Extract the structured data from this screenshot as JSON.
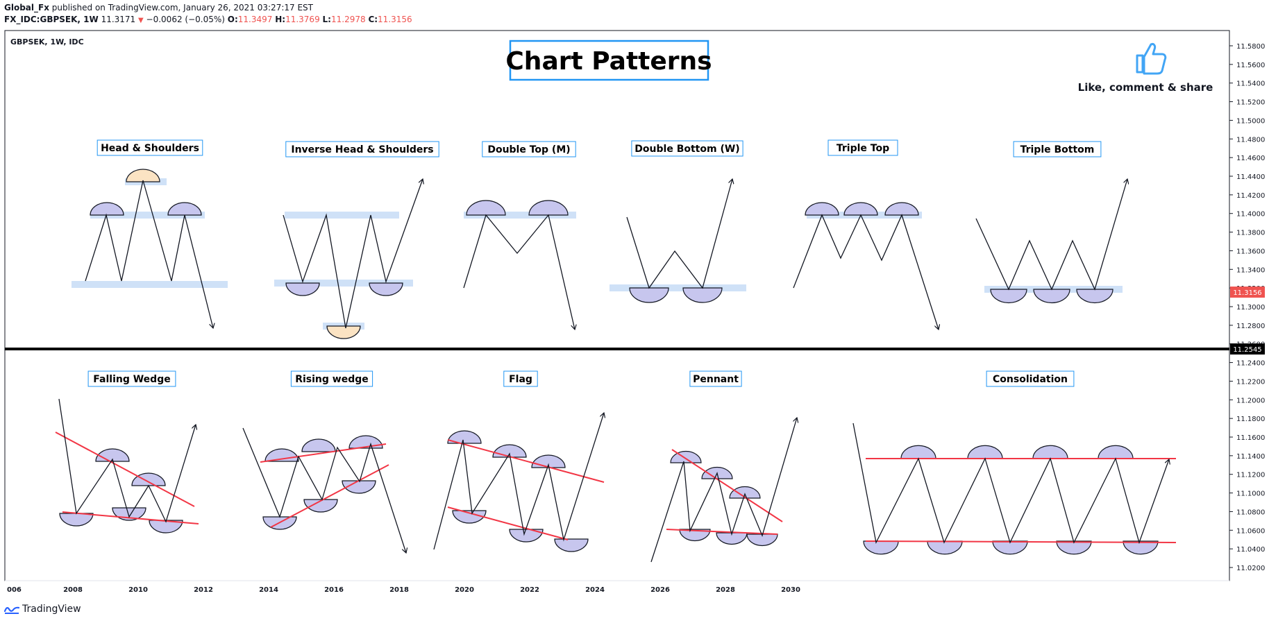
{
  "header": {
    "author": "Global_Fx",
    "published": " published on TradingView.com, January 26, 2021 03:27:17 EST",
    "symbol": "FX_IDC:GBPSEK, 1W",
    "price": "11.3171",
    "change": "−0.0062 (−0.05%)",
    "ohlc": [
      {
        "key": "O:",
        "value": "11.3497"
      },
      {
        "key": "H:",
        "value": "11.3769"
      },
      {
        "key": "L:",
        "value": "11.2978"
      },
      {
        "key": "C:",
        "value": "11.3156"
      }
    ]
  },
  "chart": {
    "legend": "GBPSEK, 1W, IDC",
    "main_title": "Chart Patterns",
    "like_text": "Like, comment & share",
    "like_icon": "thumbs-up-icon",
    "current_price_label": "11.3156",
    "crosshair_price_label": "11.2545",
    "price_ticks": [
      "11.5800",
      "11.5600",
      "11.5400",
      "11.5200",
      "11.5000",
      "11.4800",
      "11.4600",
      "11.4400",
      "11.4200",
      "11.4000",
      "11.3800",
      "11.3600",
      "11.3400",
      "11.3200",
      "11.3000",
      "11.2800",
      "11.2600",
      "11.2400",
      "11.2200",
      "11.2000",
      "11.1800",
      "11.1600",
      "11.1400",
      "11.1200",
      "11.1000",
      "11.0800",
      "11.0600",
      "11.0400",
      "11.0200"
    ],
    "time_ticks": [
      "006",
      "2008",
      "2010",
      "2012",
      "2014",
      "2016",
      "2018",
      "2020",
      "2022",
      "2024",
      "2026",
      "2028",
      "2030"
    ],
    "colors": {
      "line": "#131722",
      "trend": "#f23645",
      "zone": "#cfe1f7",
      "dome": "#c7c6ee",
      "dome_gold": "#fbe3c3",
      "title_border": "#2196f3",
      "like": "#42a5f5",
      "price_badge": "#ef5350"
    }
  },
  "chart_data": {
    "type": "line",
    "axis": {
      "ylim": [
        11.01,
        11.59
      ],
      "y_ticks_step": 0.02,
      "x_range": [
        "2006",
        "2030"
      ]
    },
    "patterns": [
      {
        "label": "Head & Shoulders"
      },
      {
        "label": "Inverse Head & Shoulders"
      },
      {
        "label": "Double Top (M)"
      },
      {
        "label": "Double Bottom (W)"
      },
      {
        "label": "Triple Top"
      },
      {
        "label": "Triple Bottom"
      },
      {
        "label": "Falling Wedge"
      },
      {
        "label": "Rising wedge"
      },
      {
        "label": "Flag"
      },
      {
        "label": "Pennant"
      },
      {
        "label": "Consolidation"
      }
    ],
    "current_price": 11.3156,
    "crosshair_price": 11.2545
  },
  "footer": {
    "brand": "TradingView",
    "logo_icon": "tradingview-logo-icon"
  }
}
